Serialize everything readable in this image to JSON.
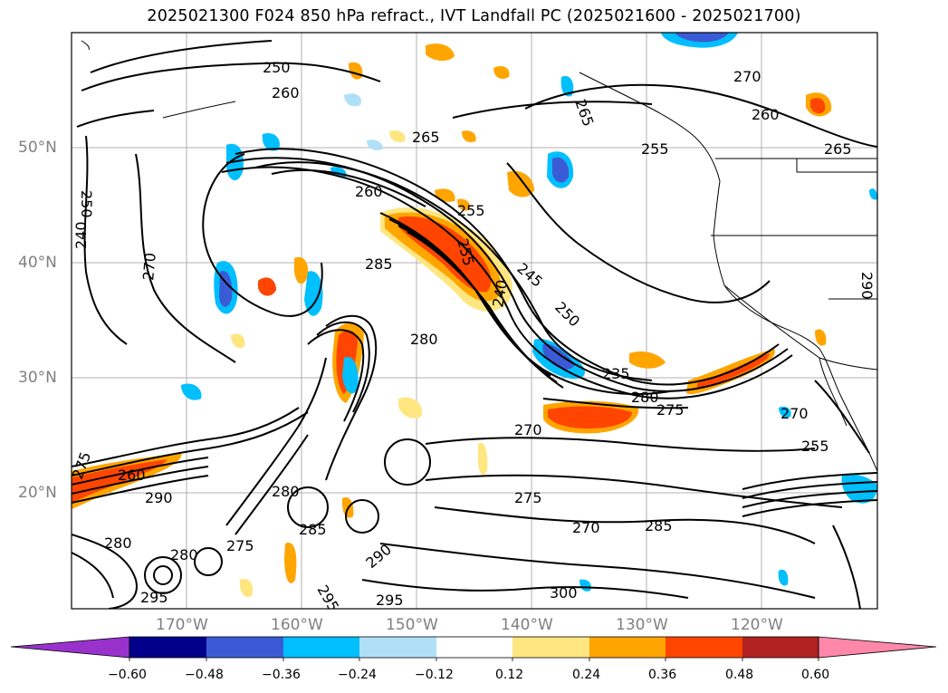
{
  "title": "2025021300 F024 850 hPa refract., IVT Landfall PC (2025021600 - 2025021700)",
  "map": {
    "lon_labels": [
      "170°W",
      "160°W",
      "150°W",
      "140°W",
      "130°W",
      "120°W"
    ],
    "lat_labels": [
      "50°N",
      "40°N",
      "30°N",
      "20°N"
    ],
    "contour_labels": [
      "250",
      "260",
      "265",
      "270",
      "260",
      "265",
      "255",
      "260",
      "255",
      "265",
      "285",
      "255",
      "245",
      "240",
      "250",
      "235",
      "280",
      "275",
      "280",
      "270",
      "255",
      "275",
      "270",
      "285",
      "300",
      "295",
      "290",
      "275",
      "280",
      "280",
      "270",
      "295",
      "275",
      "260",
      "280",
      "285",
      "295",
      "270",
      "240",
      "250",
      "290",
      "290"
    ]
  },
  "colorbar": {
    "labels": [
      "−0.60",
      "−0.48",
      "−0.36",
      "−0.24",
      "−0.12",
      "0.12",
      "0.24",
      "0.36",
      "0.48",
      "0.60"
    ],
    "colors": [
      "#9932cc",
      "#00008b",
      "#3b5bd6",
      "#00bfff",
      "#b0e0f8",
      "#ffffff",
      "#ffe680",
      "#ffa500",
      "#ff4500",
      "#b22222",
      "#ff88aa"
    ]
  }
}
